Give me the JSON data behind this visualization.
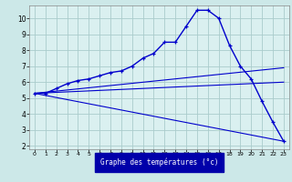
{
  "bg_color": "#cce8e8",
  "plot_bg_color": "#daf0f0",
  "grid_color": "#aacccc",
  "line_color": "#0000cc",
  "xlabel": "Graphe des températures (°c)",
  "xlabel_bg": "#0000aa",
  "xlabel_color": "#ffffff",
  "xlim": [
    -0.5,
    23.5
  ],
  "ylim": [
    1.8,
    10.8
  ],
  "yticks": [
    2,
    3,
    4,
    5,
    6,
    7,
    8,
    9,
    10
  ],
  "xtick_labels": [
    "0",
    "1",
    "2",
    "3",
    "4",
    "5",
    "6",
    "7",
    "8",
    "9",
    "10",
    "11",
    "12",
    "13",
    "14",
    "15",
    "16",
    "17",
    "18",
    "19",
    "20",
    "21",
    "22",
    "23"
  ],
  "xticks": [
    0,
    1,
    2,
    3,
    4,
    5,
    6,
    7,
    8,
    9,
    10,
    11,
    12,
    13,
    14,
    15,
    16,
    17,
    18,
    19,
    20,
    21,
    22,
    23
  ],
  "curve1_x": [
    0,
    1,
    2,
    3,
    4,
    5,
    6,
    7,
    8,
    9,
    10,
    11,
    12,
    13,
    14,
    15,
    16,
    17,
    18,
    19,
    20,
    21,
    22,
    23
  ],
  "curve1_y": [
    5.3,
    5.3,
    5.6,
    5.9,
    6.1,
    6.2,
    6.4,
    6.6,
    6.7,
    7.0,
    7.5,
    7.8,
    8.5,
    8.5,
    9.5,
    10.5,
    10.5,
    10.0,
    8.3,
    7.0,
    6.2,
    4.8,
    3.5,
    2.3
  ],
  "curve2_x": [
    0,
    23
  ],
  "curve2_y": [
    5.3,
    6.9
  ],
  "curve3_x": [
    0,
    23
  ],
  "curve3_y": [
    5.3,
    6.0
  ],
  "curve4_x": [
    0,
    23
  ],
  "curve4_y": [
    5.3,
    2.3
  ]
}
